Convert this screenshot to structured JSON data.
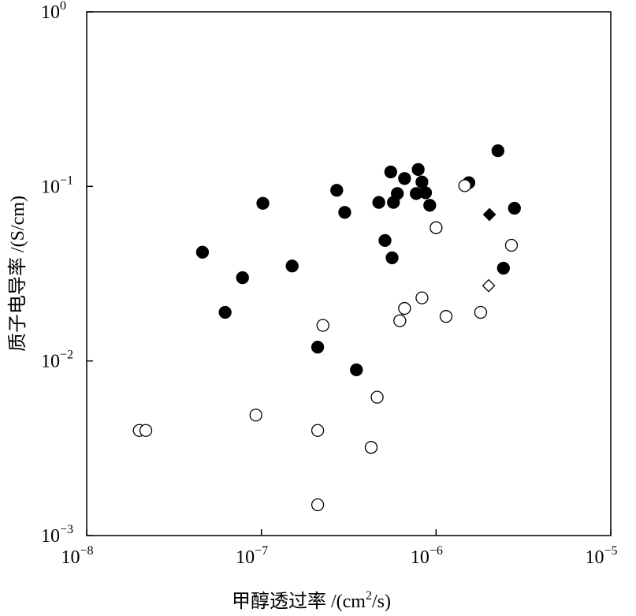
{
  "chart_data": {
    "type": "scatter",
    "x_label": [
      "甲醇透过率 /(cm",
      "2",
      "/s)"
    ],
    "y_label": "质子电导率 /(S/cm)",
    "log_x": true,
    "log_y": true,
    "xlim": [
      1e-08,
      1e-05
    ],
    "ylim": [
      0.001,
      1
    ],
    "xticks": [
      {
        "value": 1e-08,
        "label": "10",
        "exponent": "−8"
      },
      {
        "value": 1e-07,
        "label": "10",
        "exponent": "−7"
      },
      {
        "value": 1e-06,
        "label": "10",
        "exponent": "−6"
      },
      {
        "value": 1e-05,
        "label": "10",
        "exponent": "−5"
      }
    ],
    "yticks": [
      {
        "value": 0.001,
        "label": "10",
        "exponent": "−3"
      },
      {
        "value": 0.01,
        "label": "10",
        "exponent": "−2"
      },
      {
        "value": 0.1,
        "label": "10",
        "exponent": "−1"
      },
      {
        "value": 1,
        "label": "10",
        "exponent": "0"
      }
    ],
    "series": [
      {
        "marker": "circle",
        "color": "#000000",
        "filled": true,
        "x": [
          4.6e-08,
          6.2e-08,
          7.8e-08,
          1.02e-07,
          1.5e-07,
          2.1e-07,
          2.7e-07,
          3e-07,
          3.5e-07,
          4.7e-07,
          5.1e-07,
          5.5e-07,
          5.6e-07,
          5.7e-07,
          6e-07,
          6.6e-07,
          7.7e-07,
          7.9e-07,
          8.3e-07,
          8.7e-07,
          9.2e-07,
          1.54e-06,
          2.26e-06,
          2.43e-06,
          2.81e-06
        ],
        "values": [
          0.042,
          0.019,
          0.03,
          0.08,
          0.035,
          0.012,
          0.095,
          0.071,
          0.0089,
          0.081,
          0.049,
          0.121,
          0.039,
          0.081,
          0.091,
          0.111,
          0.091,
          0.125,
          0.106,
          0.092,
          0.078,
          0.105,
          0.16,
          0.034,
          0.075
        ]
      },
      {
        "marker": "circle",
        "color": "#000000",
        "filled": false,
        "x": [
          2e-08,
          2.18e-08,
          9.3e-08,
          2.1e-07,
          2.1e-07,
          2.25e-07,
          4.25e-07,
          4.6e-07,
          6.2e-07,
          6.6e-07,
          8.3e-07,
          1e-06,
          1.14e-06,
          1.46e-06,
          1.8e-06,
          2.7e-06
        ],
        "values": [
          0.004,
          0.004,
          0.0049,
          0.004,
          0.0015,
          0.016,
          0.0032,
          0.0062,
          0.017,
          0.02,
          0.023,
          0.058,
          0.018,
          0.101,
          0.019,
          0.046
        ]
      },
      {
        "marker": "diamond",
        "color": "#000000",
        "filled": true,
        "x": [
          2.02e-06
        ],
        "values": [
          0.069
        ]
      },
      {
        "marker": "diamond",
        "color": "#000000",
        "filled": false,
        "x": [
          2e-06
        ],
        "values": [
          0.027
        ]
      }
    ]
  }
}
